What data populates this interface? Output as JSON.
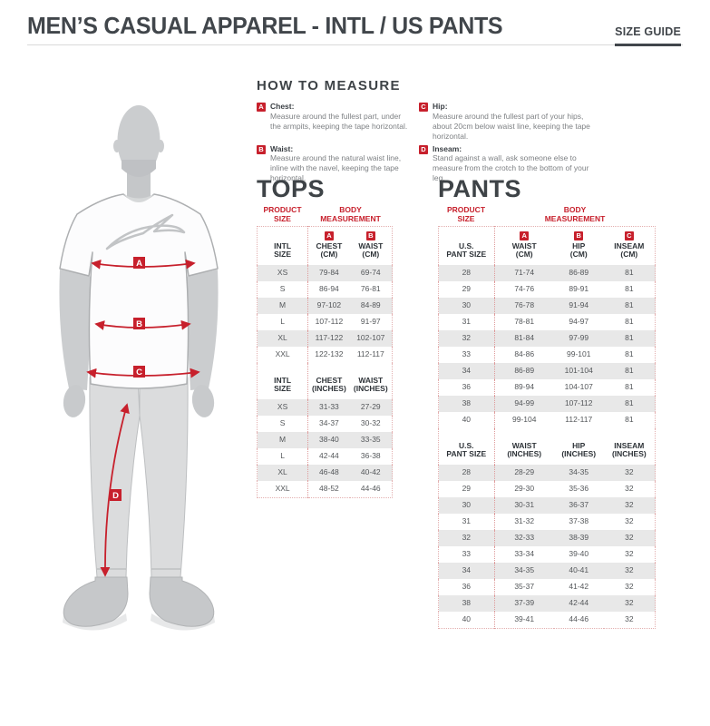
{
  "header": {
    "title": "MEN’S CASUAL APPAREL - INTL / US PANTS",
    "size_guide_label": "SIZE GUIDE"
  },
  "colors": {
    "accent_red": "#C7202C",
    "heading_dark": "#41464B",
    "row_stripe": "#E8E8E8"
  },
  "how_to_measure": {
    "heading": "HOW TO MEASURE",
    "items": [
      {
        "letter": "A",
        "label": "Chest:",
        "text": "Measure around the fullest part, under the armpits, keeping the tape horizontal."
      },
      {
        "letter": "B",
        "label": "Waist:",
        "text": "Measure around the natural waist line, inline with the navel, keeping the tape horizontal."
      },
      {
        "letter": "C",
        "label": "Hip:",
        "text": "Measure around the fullest part of your hips, about 20cm below waist line, keeping the tape horizontal."
      },
      {
        "letter": "D",
        "label": "Inseam:",
        "text": "Stand against a wall, ask someone else to measure from the crotch to the bottom of your leg."
      }
    ]
  },
  "figure": {
    "markers": [
      "A",
      "B",
      "C",
      "D"
    ]
  },
  "tops": {
    "heading": "TOPS",
    "product_size_label": "PRODUCT\nSIZE",
    "body_measurement_label": "BODY\nMEASUREMENT",
    "cm": {
      "size_label": "INTL\nSIZE",
      "col1": {
        "badge": "A",
        "label": "CHEST\n(CM)"
      },
      "col2": {
        "badge": "B",
        "label": "WAIST\n(CM)"
      },
      "rows": [
        [
          "XS",
          "79-84",
          "69-74"
        ],
        [
          "S",
          "86-94",
          "76-81"
        ],
        [
          "M",
          "97-102",
          "84-89"
        ],
        [
          "L",
          "107-112",
          "91-97"
        ],
        [
          "XL",
          "117-122",
          "102-107"
        ],
        [
          "XXL",
          "122-132",
          "112-117"
        ]
      ]
    },
    "inches": {
      "size_label": "INTL\nSIZE",
      "col1": {
        "label": "CHEST\n(INCHES)"
      },
      "col2": {
        "label": "WAIST\n(INCHES)"
      },
      "rows": [
        [
          "XS",
          "31-33",
          "27-29"
        ],
        [
          "S",
          "34-37",
          "30-32"
        ],
        [
          "M",
          "38-40",
          "33-35"
        ],
        [
          "L",
          "42-44",
          "36-38"
        ],
        [
          "XL",
          "46-48",
          "40-42"
        ],
        [
          "XXL",
          "48-52",
          "44-46"
        ]
      ]
    }
  },
  "pants": {
    "heading": "PANTS",
    "product_size_label": "PRODUCT\nSIZE",
    "body_measurement_label": "BODY\nMEASUREMENT",
    "cm": {
      "size_label": "U.S.\nPANT SIZE",
      "col1": {
        "badge": "A",
        "label": "WAIST\n(CM)"
      },
      "col2": {
        "badge": "B",
        "label": "HIP\n(CM)"
      },
      "col3": {
        "badge": "C",
        "label": "INSEAM\n(CM)"
      },
      "rows": [
        [
          "28",
          "71-74",
          "86-89",
          "81"
        ],
        [
          "29",
          "74-76",
          "89-91",
          "81"
        ],
        [
          "30",
          "76-78",
          "91-94",
          "81"
        ],
        [
          "31",
          "78-81",
          "94-97",
          "81"
        ],
        [
          "32",
          "81-84",
          "97-99",
          "81"
        ],
        [
          "33",
          "84-86",
          "99-101",
          "81"
        ],
        [
          "34",
          "86-89",
          "101-104",
          "81"
        ],
        [
          "36",
          "89-94",
          "104-107",
          "81"
        ],
        [
          "38",
          "94-99",
          "107-112",
          "81"
        ],
        [
          "40",
          "99-104",
          "112-117",
          "81"
        ]
      ]
    },
    "inches": {
      "size_label": "U.S.\nPANT SIZE",
      "col1": {
        "label": "WAIST\n(INCHES)"
      },
      "col2": {
        "label": "HIP\n(INCHES)"
      },
      "col3": {
        "label": "INSEAM\n(INCHES)"
      },
      "rows": [
        [
          "28",
          "28-29",
          "34-35",
          "32"
        ],
        [
          "29",
          "29-30",
          "35-36",
          "32"
        ],
        [
          "30",
          "30-31",
          "36-37",
          "32"
        ],
        [
          "31",
          "31-32",
          "37-38",
          "32"
        ],
        [
          "32",
          "32-33",
          "38-39",
          "32"
        ],
        [
          "33",
          "33-34",
          "39-40",
          "32"
        ],
        [
          "34",
          "34-35",
          "40-41",
          "32"
        ],
        [
          "36",
          "35-37",
          "41-42",
          "32"
        ],
        [
          "38",
          "37-39",
          "42-44",
          "32"
        ],
        [
          "40",
          "39-41",
          "44-46",
          "32"
        ]
      ]
    }
  }
}
